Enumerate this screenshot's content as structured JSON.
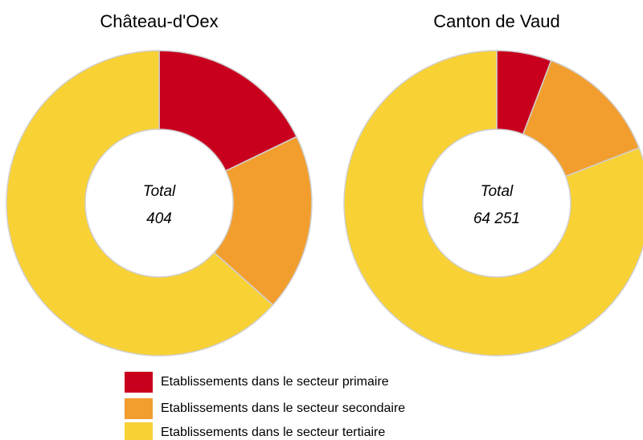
{
  "chart_data": [
    {
      "type": "donut",
      "title": "Château-d'Oex",
      "total_label": "Total",
      "total": 404,
      "values": [
        72,
        76,
        256
      ]
    },
    {
      "type": "donut",
      "title": "Canton de Vaud",
      "total_label": "Total",
      "total": {
        "value": 64251,
        "label": "64 251"
      },
      "values": [
        3730,
        8540,
        51981
      ]
    }
  ],
  "legend": {
    "labels": [
      "Etablissements dans le secteur primaire",
      "Etablissements dans le secteur secondaire",
      "Etablissements dans le secteur tertiaire"
    ],
    "colors": [
      "#c8001e",
      "#f29e2e",
      "#f8d135"
    ]
  }
}
